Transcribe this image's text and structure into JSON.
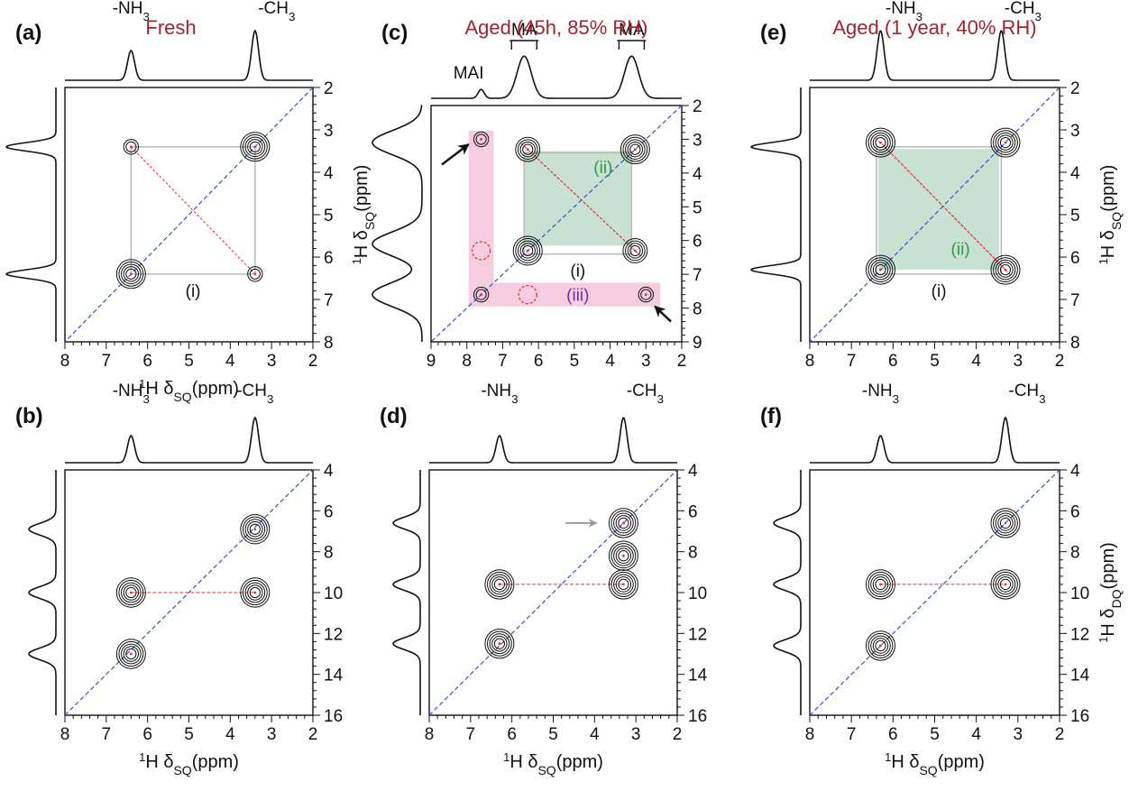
{
  "axis_titles": {
    "x_sq": "¹H δSQ(ppm)",
    "y_sq": "¹H δSQ(ppm)",
    "y_dq": "¹H δDQ(ppm)"
  },
  "colors": {
    "title": "#a3232a",
    "diagonal": "#3355bb",
    "correlation": "#e03030",
    "pink_box": "#f5cce0",
    "green_box": "#bfdccb",
    "label_green": "#2e9a4a",
    "label_purple": "#7030a0",
    "arrow_gray": "#999999"
  },
  "chart_data": [
    {
      "id": "a",
      "panel_label": "(a)",
      "title": "Fresh",
      "type": "2D NMR contour (1H-1H SQ-SQ)",
      "x_axis": {
        "label": "¹H δSQ(ppm)",
        "range": [
          8,
          2
        ],
        "ticks": [
          8,
          7,
          6,
          5,
          4,
          3,
          2
        ]
      },
      "y_axis": {
        "label": "¹H δSQ(ppm)",
        "range": [
          2,
          8
        ],
        "ticks": [
          2,
          3,
          4,
          5,
          6,
          7,
          8
        ]
      },
      "top_projection": {
        "peaks": [
          {
            "position": 6.4,
            "label": "-NH₃"
          },
          {
            "position": 3.4,
            "label": "-CH₃"
          }
        ]
      },
      "left_projection": {
        "peaks": [
          3.4,
          6.4
        ]
      },
      "diagonal": true,
      "peaks": [
        {
          "x": 3.4,
          "y": 3.4,
          "intensity": "strong"
        },
        {
          "x": 6.4,
          "y": 6.4,
          "intensity": "strong"
        },
        {
          "x": 6.4,
          "y": 3.4,
          "intensity": "weak"
        },
        {
          "x": 3.4,
          "y": 6.4,
          "intensity": "weak"
        }
      ],
      "correlation_box": {
        "x": [
          6.4,
          3.4
        ],
        "y": [
          3.4,
          6.4
        ],
        "label": "(i)"
      }
    },
    {
      "id": "c",
      "panel_label": "(c)",
      "title": "Aged (45h, 85% RH)",
      "type": "2D NMR contour (1H-1H SQ-SQ)",
      "x_axis": {
        "label": "",
        "range": [
          9,
          2
        ],
        "ticks": [
          9,
          8,
          7,
          6,
          5,
          4,
          3,
          2
        ]
      },
      "y_axis": {
        "label": "",
        "range": [
          2,
          9
        ],
        "ticks": [
          2,
          3,
          4,
          5,
          6,
          7,
          8,
          9
        ]
      },
      "top_projection": {
        "peaks": [
          {
            "position": 7.6,
            "label": "MAI"
          },
          {
            "position": 6.4,
            "label": "MA"
          },
          {
            "position": 3.4,
            "label": "MA"
          }
        ]
      },
      "left_projection": {
        "peaks": [
          3.1,
          6.1,
          7.6
        ]
      },
      "diagonal": true,
      "peaks": [
        {
          "x": 3.3,
          "y": 3.3,
          "intensity": "strong"
        },
        {
          "x": 6.3,
          "y": 6.3,
          "intensity": "strong"
        },
        {
          "x": 6.3,
          "y": 3.3,
          "intensity": "medium"
        },
        {
          "x": 3.3,
          "y": 6.3,
          "intensity": "medium"
        },
        {
          "x": 7.6,
          "y": 3.0,
          "intensity": "weak"
        },
        {
          "x": 3.0,
          "y": 7.6,
          "intensity": "weak"
        },
        {
          "x": 7.6,
          "y": 7.6,
          "intensity": "weak"
        }
      ],
      "regions": [
        {
          "label": "(i)",
          "x": [
            6.4,
            3.4
          ],
          "y": [
            3.4,
            6.4
          ]
        },
        {
          "label": "(ii)",
          "x": [
            6.4,
            3.4
          ],
          "y": [
            3.4,
            6.3
          ]
        },
        {
          "label": "(iii)",
          "x": [
            7.6,
            3.0
          ],
          "y": [
            3.0,
            7.6
          ]
        }
      ],
      "missing_peaks": [
        {
          "x": 7.6,
          "y": 6.3
        },
        {
          "x": 6.3,
          "y": 7.6
        }
      ],
      "arrows": [
        {
          "x": 7.6,
          "y": 3.0
        },
        {
          "x": 3.0,
          "y": 7.6
        }
      ]
    },
    {
      "id": "e",
      "panel_label": "(e)",
      "title": "Aged (1 year, 40% RH)",
      "type": "2D NMR contour (1H-1H SQ-SQ)",
      "x_axis": {
        "label": "",
        "range": [
          8,
          2
        ],
        "ticks": [
          8,
          7,
          6,
          5,
          4,
          3,
          2
        ]
      },
      "y_axis": {
        "label": "¹H δSQ(ppm)",
        "range": [
          2,
          8
        ],
        "ticks": [
          2,
          3,
          4,
          5,
          6,
          7,
          8
        ]
      },
      "top_projection": {
        "peaks": [
          {
            "position": 6.3,
            "label": "-NH₃"
          },
          {
            "position": 3.4,
            "label": "-CH₃"
          }
        ]
      },
      "left_projection": {
        "peaks": [
          3.4,
          6.3
        ]
      },
      "diagonal": true,
      "peaks": [
        {
          "x": 3.3,
          "y": 3.3,
          "intensity": "strong"
        },
        {
          "x": 6.3,
          "y": 6.3,
          "intensity": "strong"
        },
        {
          "x": 6.3,
          "y": 3.3,
          "intensity": "strong"
        },
        {
          "x": 3.3,
          "y": 6.3,
          "intensity": "strong"
        }
      ],
      "regions": [
        {
          "label": "(i)",
          "x": [
            6.4,
            3.4
          ],
          "y": [
            3.4,
            6.4
          ]
        },
        {
          "label": "(ii)",
          "x": [
            6.4,
            3.4
          ],
          "y": [
            3.5,
            6.3
          ]
        }
      ]
    },
    {
      "id": "b",
      "panel_label": "(b)",
      "title": "",
      "type": "2D NMR contour (1H-1H DQ-SQ)",
      "x_axis": {
        "label": "¹H δSQ(ppm)",
        "range": [
          8,
          2
        ],
        "ticks": [
          8,
          7,
          6,
          5,
          4,
          3,
          2
        ]
      },
      "y_axis": {
        "label": "",
        "range": [
          4,
          16
        ],
        "ticks": [
          4,
          6,
          8,
          10,
          12,
          14,
          16
        ]
      },
      "top_projection": {
        "peaks": [
          {
            "position": 6.4,
            "label": "-NH₃"
          },
          {
            "position": 3.4,
            "label": "-CH₃"
          }
        ]
      },
      "left_projection": {
        "peaks": [
          6.9,
          10.0,
          13.0
        ]
      },
      "diagonal": true,
      "peaks": [
        {
          "x": 3.4,
          "y": 6.9
        },
        {
          "x": 6.4,
          "y": 10.0
        },
        {
          "x": 3.4,
          "y": 10.0
        },
        {
          "x": 6.4,
          "y": 13.0
        }
      ],
      "correlation_line": {
        "y": 10.0,
        "x": [
          6.4,
          3.4
        ]
      }
    },
    {
      "id": "d",
      "panel_label": "(d)",
      "title": "",
      "type": "2D NMR contour (1H-1H DQ-SQ)",
      "x_axis": {
        "label": "¹H δSQ(ppm)",
        "range": [
          8,
          2
        ],
        "ticks": [
          8,
          7,
          6,
          5,
          4,
          3,
          2
        ]
      },
      "y_axis": {
        "label": "",
        "range": [
          4,
          16
        ],
        "ticks": [
          4,
          6,
          8,
          10,
          12,
          14,
          16
        ]
      },
      "top_projection": {
        "peaks": [
          {
            "position": 6.3,
            "label": "-NH₃"
          },
          {
            "position": 3.3,
            "label": "-CH₃"
          }
        ]
      },
      "left_projection": {
        "peaks": [
          6.6,
          9.6,
          12.5
        ]
      },
      "diagonal": true,
      "peaks": [
        {
          "x": 3.3,
          "y": 6.6
        },
        {
          "x": 6.3,
          "y": 9.6
        },
        {
          "x": 3.3,
          "y": 9.6
        },
        {
          "x": 6.3,
          "y": 12.5
        },
        {
          "x": 3.3,
          "y": 8.2
        }
      ],
      "correlation_line": {
        "y": 9.6,
        "x": [
          6.3,
          3.3
        ]
      },
      "arrows": [
        {
          "x": 3.3,
          "y": 6.6
        }
      ]
    },
    {
      "id": "f",
      "panel_label": "(f)",
      "title": "",
      "type": "2D NMR contour (1H-1H DQ-SQ)",
      "x_axis": {
        "label": "¹H δSQ(ppm)",
        "range": [
          8,
          2
        ],
        "ticks": [
          8,
          7,
          6,
          5,
          4,
          3,
          2
        ]
      },
      "y_axis": {
        "label": "¹H δDQ(ppm)",
        "range": [
          4,
          16
        ],
        "ticks": [
          4,
          6,
          8,
          10,
          12,
          14,
          16
        ]
      },
      "top_projection": {
        "peaks": [
          {
            "position": 6.3,
            "label": "-NH₃"
          },
          {
            "position": 3.3,
            "label": "-CH₃"
          }
        ]
      },
      "left_projection": {
        "peaks": [
          6.6,
          9.6,
          12.6
        ]
      },
      "diagonal": true,
      "peaks": [
        {
          "x": 3.3,
          "y": 6.6
        },
        {
          "x": 6.3,
          "y": 9.6
        },
        {
          "x": 3.3,
          "y": 9.6
        },
        {
          "x": 6.3,
          "y": 12.6
        }
      ],
      "correlation_line": {
        "y": 9.6,
        "x": [
          6.3,
          3.3
        ]
      }
    }
  ]
}
